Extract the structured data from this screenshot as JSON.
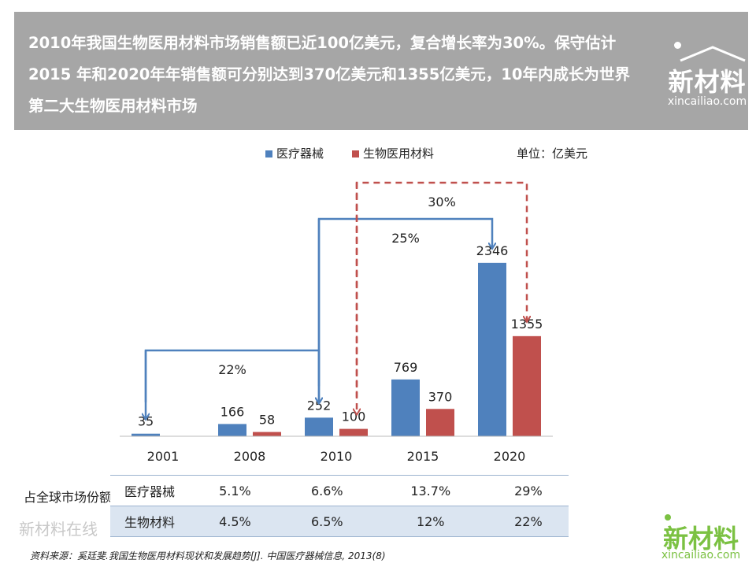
{
  "header": {
    "text": "2010年我国生物医用材料市场销售额已近100亿美元，复合增长率为30%。保守估计2015 年和2020年年销售额可分别达到370亿美元和1355亿美元，10年内成长为世界第二大生物医用材料市场"
  },
  "logo": {
    "main": "新材料",
    "sub": "xincailiao.com"
  },
  "unit": "单位：亿美元",
  "colors": {
    "series1": "#4f81bd",
    "series2": "#c0504d",
    "header_bg": "#a6a6a6",
    "logo_green": "#7bc142"
  },
  "chart_data": {
    "type": "bar",
    "categories": [
      "2001",
      "2008",
      "2010",
      "2015",
      "2020"
    ],
    "series": [
      {
        "name": "医疗器械",
        "values": [
          35,
          166,
          252,
          769,
          2346
        ],
        "color": "#4f81bd"
      },
      {
        "name": "生物医用材料",
        "values": [
          null,
          58,
          100,
          370,
          1355
        ],
        "color": "#c0504d"
      }
    ],
    "ylim": [
      0,
      2600
    ],
    "grid": false,
    "legend": "top",
    "annotations": [
      {
        "text": "22%",
        "from": "2001",
        "to": "2010",
        "series": "医疗器械",
        "style": "solid"
      },
      {
        "text": "25%",
        "from": "2010",
        "to": "2020",
        "series": "医疗器械",
        "style": "solid"
      },
      {
        "text": "30%",
        "from": "2010",
        "to": "2020",
        "series": "生物医用材料",
        "style": "dashed"
      }
    ]
  },
  "share_table": {
    "row_header": "占全球市场份额",
    "rows": [
      {
        "label": "医疗器械",
        "values": [
          "5.1%",
          "6.6%",
          "13.7%",
          "29%"
        ]
      },
      {
        "label": "生物材料",
        "values": [
          "4.5%",
          "6.5%",
          "12%",
          "22%"
        ]
      }
    ]
  },
  "source": "资料来源：奚廷斐.我国生物医用材料现状和发展趋势[J]. 中国医疗器械信息, 2013(8)",
  "watermark": "新材料在线",
  "footer_logo": {
    "main": "新材料",
    "sub": "xincailiao.com"
  }
}
